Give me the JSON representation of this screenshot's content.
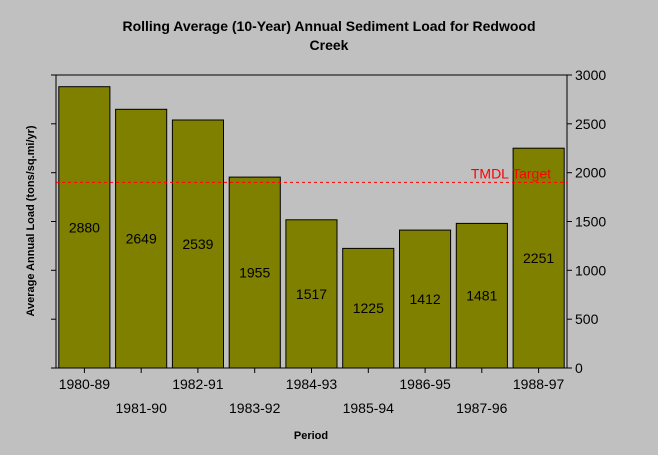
{
  "chart_data": {
    "type": "bar",
    "title_line1": "Rolling Average (10-Year) Annual Sediment Load for Redwood",
    "title_line2": "Creek",
    "xlabel": "Period",
    "ylabel": "Average Annual Load (tons/sq.mi/yr)",
    "categories": [
      "1980-89",
      "1981-90",
      "1982-91",
      "1983-92",
      "1984-93",
      "1985-94",
      "1986-95",
      "1987-96",
      "1988-97"
    ],
    "values": [
      2880,
      2649,
      2539,
      1955,
      1517,
      1225,
      1412,
      1481,
      2251
    ],
    "data_labels": [
      "2880",
      "2649",
      "2539",
      "1955",
      "1517",
      "1225",
      "1412",
      "1481",
      "2251"
    ],
    "ylim": [
      0,
      3000
    ],
    "yticks": [
      0,
      500,
      1000,
      1500,
      2000,
      2500,
      3000
    ],
    "ytick_labels": [
      "0",
      "500",
      "1000",
      "1500",
      "2000",
      "2500",
      "3000"
    ],
    "target": {
      "label": "TMDL Target",
      "value": 1900,
      "color": "#ff0000"
    },
    "colors": {
      "bar": "#808000",
      "plot_bg": "#c0c0c0"
    },
    "grid": false,
    "legend": "none"
  }
}
